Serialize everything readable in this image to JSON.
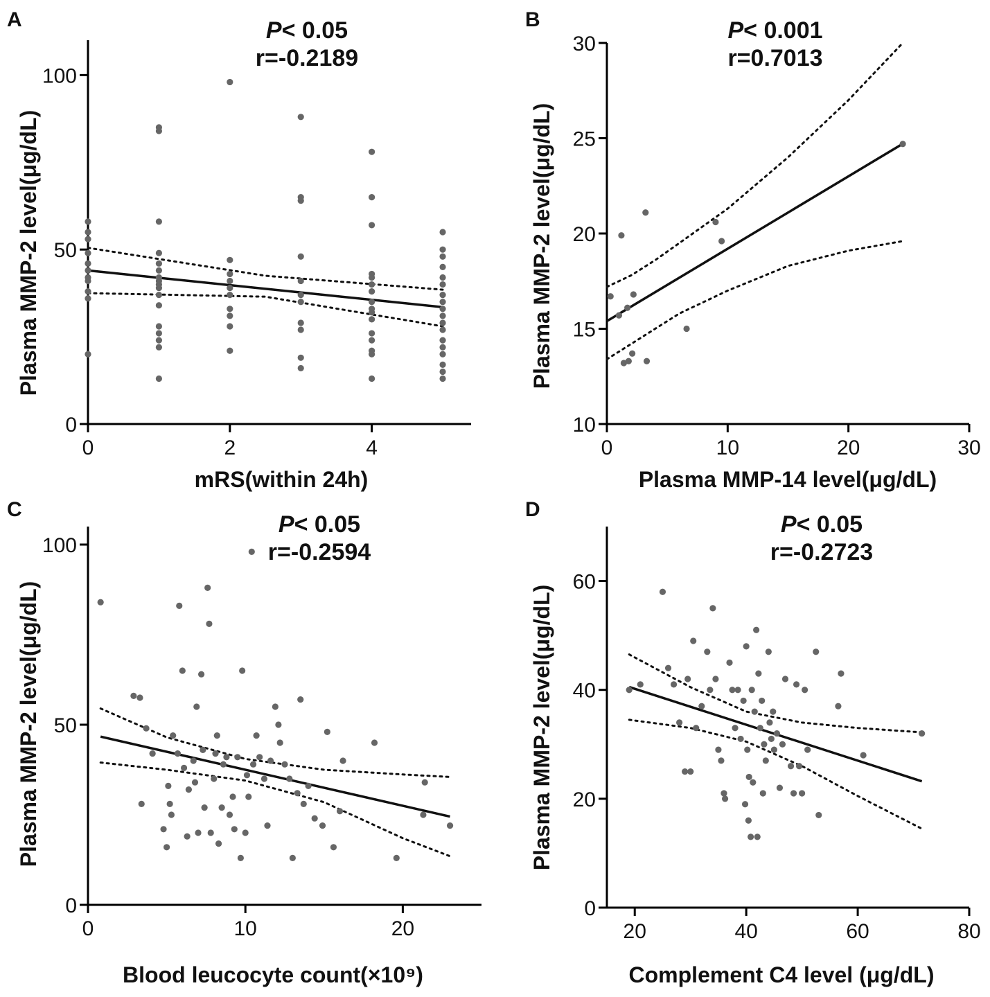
{
  "chart_data": [
    {
      "id": "A",
      "type": "scatter",
      "panel_label": "A",
      "stat_p_symbol": "P",
      "stat_p_rest": "< 0.05",
      "stat_r": "r=-0.2189",
      "xlabel": "mRS(within 24h)",
      "ylabel": "Plasma MMP-2 level(μg/dL)",
      "xlim": [
        0,
        5.4
      ],
      "ylim": [
        0,
        110
      ],
      "x_ticks": [
        0,
        2,
        4
      ],
      "x_tick_labels": [
        "0",
        "2",
        "4"
      ],
      "y_ticks": [
        0,
        50,
        100
      ],
      "y_tick_labels": [
        "0",
        "50",
        "100"
      ],
      "fit": {
        "slope": -2.1,
        "intercept": 44,
        "x_range": [
          0,
          5
        ]
      },
      "ci": {
        "x": [
          0,
          2.5,
          5
        ],
        "upper": [
          50.5,
          42.5,
          38.5
        ],
        "lower": [
          37.5,
          36.5,
          28
        ]
      },
      "points": [
        [
          0,
          20
        ],
        [
          0,
          36
        ],
        [
          0,
          38
        ],
        [
          0,
          41
        ],
        [
          0,
          42
        ],
        [
          0,
          44
        ],
        [
          0,
          46
        ],
        [
          0,
          49
        ],
        [
          0,
          53
        ],
        [
          0,
          55
        ],
        [
          0,
          58
        ],
        [
          1,
          13
        ],
        [
          1,
          22
        ],
        [
          1,
          24
        ],
        [
          1,
          26
        ],
        [
          1,
          28
        ],
        [
          1,
          34
        ],
        [
          1,
          37
        ],
        [
          1,
          39
        ],
        [
          1,
          40
        ],
        [
          1,
          41
        ],
        [
          1,
          42
        ],
        [
          1,
          44
        ],
        [
          1,
          46
        ],
        [
          1,
          49
        ],
        [
          1,
          58
        ],
        [
          1,
          84
        ],
        [
          1,
          85
        ],
        [
          2,
          21
        ],
        [
          2,
          28
        ],
        [
          2,
          31
        ],
        [
          2,
          33
        ],
        [
          2,
          37
        ],
        [
          2,
          39
        ],
        [
          2,
          41
        ],
        [
          2,
          43
        ],
        [
          2,
          47
        ],
        [
          2,
          98
        ],
        [
          3,
          16
        ],
        [
          3,
          19
        ],
        [
          3,
          27
        ],
        [
          3,
          29
        ],
        [
          3,
          35
        ],
        [
          3,
          37
        ],
        [
          3,
          41
        ],
        [
          3,
          48
        ],
        [
          3,
          64
        ],
        [
          3,
          65
        ],
        [
          3,
          88
        ],
        [
          4,
          13
        ],
        [
          4,
          20
        ],
        [
          4,
          21
        ],
        [
          4,
          24
        ],
        [
          4,
          26
        ],
        [
          4,
          30
        ],
        [
          4,
          32
        ],
        [
          4,
          33
        ],
        [
          4,
          35
        ],
        [
          4,
          38
        ],
        [
          4,
          40
        ],
        [
          4,
          42
        ],
        [
          4,
          43
        ],
        [
          4,
          57
        ],
        [
          4,
          65
        ],
        [
          4,
          78
        ],
        [
          5,
          13
        ],
        [
          5,
          15
        ],
        [
          5,
          17
        ],
        [
          5,
          20
        ],
        [
          5,
          22
        ],
        [
          5,
          24
        ],
        [
          5,
          27
        ],
        [
          5,
          29
        ],
        [
          5,
          31
        ],
        [
          5,
          33
        ],
        [
          5,
          35
        ],
        [
          5,
          37
        ],
        [
          5,
          40
        ],
        [
          5,
          42
        ],
        [
          5,
          45
        ],
        [
          5,
          48
        ],
        [
          5,
          50
        ],
        [
          5,
          55
        ]
      ]
    },
    {
      "id": "B",
      "type": "scatter",
      "panel_label": "B",
      "stat_p_symbol": "P",
      "stat_p_rest": "< 0.001",
      "stat_r": "r=0.7013",
      "xlabel": "Plasma MMP-14 level(μg/dL)",
      "ylabel": "Plasma MMP-2 level(μg/dL)",
      "xlim": [
        0,
        30
      ],
      "ylim": [
        10,
        30
      ],
      "x_ticks": [
        0,
        10,
        20,
        30
      ],
      "x_tick_labels": [
        "0",
        "10",
        "20",
        "30"
      ],
      "y_ticks": [
        10,
        15,
        20,
        25,
        30
      ],
      "y_tick_labels": [
        "10",
        "15",
        "20",
        "25",
        "30"
      ],
      "fit": {
        "slope": 0.38,
        "intercept": 15.4,
        "x_range": [
          0,
          24.5
        ]
      },
      "ci": {
        "x": [
          0,
          2,
          4,
          6,
          10,
          15,
          20,
          24.5
        ],
        "upper": [
          17.2,
          17.8,
          18.6,
          19.5,
          21.3,
          24.0,
          27.0,
          30.0
        ],
        "lower": [
          13.4,
          14.2,
          15.0,
          15.8,
          17.0,
          18.3,
          19.1,
          19.6
        ]
      },
      "points": [
        [
          0.3,
          16.7
        ],
        [
          1.0,
          15.7
        ],
        [
          1.2,
          19.9
        ],
        [
          1.4,
          13.2
        ],
        [
          1.7,
          16.1
        ],
        [
          1.8,
          13.3
        ],
        [
          2.1,
          13.7
        ],
        [
          2.2,
          16.8
        ],
        [
          3.2,
          21.1
        ],
        [
          3.3,
          13.3
        ],
        [
          6.6,
          15.0
        ],
        [
          9.0,
          20.6
        ],
        [
          9.5,
          19.6
        ],
        [
          24.5,
          24.7
        ]
      ]
    },
    {
      "id": "C",
      "type": "scatter",
      "panel_label": "C",
      "stat_p_symbol": "P",
      "stat_p_rest": "< 0.05",
      "stat_r": "r=-0.2594",
      "xlabel": "Blood leucocyte count(×10⁹)",
      "ylabel": "Plasma MMP-2 level(μg/dL)",
      "xlim": [
        0,
        25
      ],
      "ylim": [
        0,
        105
      ],
      "x_ticks": [
        0,
        10,
        20
      ],
      "x_tick_labels": [
        "0",
        "10",
        "20"
      ],
      "y_ticks": [
        0,
        50,
        100
      ],
      "y_tick_labels": [
        "0",
        "50",
        "100"
      ],
      "fit": {
        "slope": -1.0,
        "intercept": 47.5,
        "x_range": [
          0.8,
          23
        ]
      },
      "ci": {
        "x": [
          0.8,
          5,
          10,
          15,
          20,
          23
        ],
        "upper": [
          54.5,
          46.5,
          40.5,
          37.5,
          36.2,
          35.5
        ],
        "lower": [
          39.5,
          37.5,
          34.5,
          28.5,
          18.5,
          13.5
        ]
      },
      "points": [
        [
          0.8,
          84
        ],
        [
          2.9,
          58
        ],
        [
          3.3,
          57.5
        ],
        [
          3.4,
          28
        ],
        [
          3.7,
          49
        ],
        [
          4.1,
          42
        ],
        [
          4.8,
          21
        ],
        [
          5.0,
          16
        ],
        [
          5.1,
          33
        ],
        [
          5.2,
          28
        ],
        [
          5.3,
          25
        ],
        [
          5.4,
          47
        ],
        [
          5.7,
          42
        ],
        [
          5.8,
          83
        ],
        [
          6.0,
          65
        ],
        [
          6.1,
          38
        ],
        [
          6.3,
          19
        ],
        [
          6.4,
          32
        ],
        [
          6.7,
          40
        ],
        [
          6.8,
          34
        ],
        [
          6.9,
          55
        ],
        [
          7.0,
          20
        ],
        [
          7.2,
          64
        ],
        [
          7.3,
          43
        ],
        [
          7.4,
          27
        ],
        [
          7.6,
          88
        ],
        [
          7.7,
          78
        ],
        [
          7.8,
          20
        ],
        [
          8.0,
          35
        ],
        [
          8.1,
          42
        ],
        [
          8.2,
          47
        ],
        [
          8.3,
          17
        ],
        [
          8.5,
          27
        ],
        [
          8.6,
          39
        ],
        [
          8.8,
          41
        ],
        [
          9.0,
          25
        ],
        [
          9.2,
          30
        ],
        [
          9.3,
          21
        ],
        [
          9.5,
          41
        ],
        [
          9.7,
          13
        ],
        [
          9.8,
          65
        ],
        [
          10.0,
          20
        ],
        [
          10.1,
          36
        ],
        [
          10.2,
          30
        ],
        [
          10.4,
          98
        ],
        [
          10.5,
          39
        ],
        [
          10.7,
          47
        ],
        [
          10.9,
          41
        ],
        [
          11.2,
          35
        ],
        [
          11.4,
          22
        ],
        [
          11.6,
          40
        ],
        [
          11.9,
          55
        ],
        [
          12.1,
          50
        ],
        [
          12.2,
          45
        ],
        [
          12.5,
          39
        ],
        [
          12.8,
          35
        ],
        [
          13.0,
          13
        ],
        [
          13.3,
          31
        ],
        [
          13.5,
          57
        ],
        [
          13.7,
          28
        ],
        [
          14.0,
          33
        ],
        [
          14.4,
          24
        ],
        [
          14.9,
          22
        ],
        [
          15.2,
          48
        ],
        [
          15.6,
          16
        ],
        [
          16.0,
          26
        ],
        [
          16.2,
          40
        ],
        [
          18.2,
          45
        ],
        [
          19.6,
          13
        ],
        [
          21.3,
          25
        ],
        [
          21.4,
          34
        ],
        [
          23.0,
          22
        ]
      ]
    },
    {
      "id": "D",
      "type": "scatter",
      "panel_label": "D",
      "stat_p_symbol": "P",
      "stat_p_rest": "< 0.05",
      "stat_r": "r=-0.2723",
      "xlabel": "Complement C4 level (μg/dL)",
      "ylabel": "Plasma MMP-2 level(μg/dL)",
      "xlim": [
        15,
        80
      ],
      "ylim": [
        0,
        70
      ],
      "x_ticks": [
        20,
        40,
        60,
        80
      ],
      "x_tick_labels": [
        "20",
        "40",
        "60",
        "80"
      ],
      "y_ticks": [
        0,
        20,
        40,
        60
      ],
      "y_tick_labels": [
        "0",
        "20",
        "40",
        "60"
      ],
      "fit": {
        "slope": -0.33,
        "intercept": 46.8,
        "x_range": [
          19,
          71.5
        ]
      },
      "ci": {
        "x": [
          19,
          30,
          40,
          50,
          60,
          71.5
        ],
        "upper": [
          46.5,
          40.5,
          36.0,
          34.0,
          33.0,
          32.2
        ],
        "lower": [
          34.5,
          33.0,
          30.5,
          26.0,
          20.5,
          14.5
        ]
      },
      "points": [
        [
          19,
          40
        ],
        [
          21,
          41
        ],
        [
          25,
          58
        ],
        [
          26,
          44
        ],
        [
          27,
          41
        ],
        [
          28,
          34
        ],
        [
          29,
          25
        ],
        [
          29.5,
          42
        ],
        [
          30,
          25
        ],
        [
          30.5,
          49
        ],
        [
          31,
          33
        ],
        [
          32,
          37
        ],
        [
          33,
          47
        ],
        [
          33.5,
          40
        ],
        [
          34,
          55
        ],
        [
          34.5,
          42
        ],
        [
          35,
          29
        ],
        [
          35.5,
          27
        ],
        [
          36,
          21
        ],
        [
          36.2,
          20
        ],
        [
          37,
          45
        ],
        [
          37.5,
          40
        ],
        [
          38,
          33
        ],
        [
          38.5,
          40
        ],
        [
          39,
          31
        ],
        [
          39.5,
          38
        ],
        [
          39.8,
          19
        ],
        [
          40,
          48
        ],
        [
          40.2,
          29
        ],
        [
          40.4,
          16
        ],
        [
          40.5,
          24
        ],
        [
          40.8,
          13
        ],
        [
          41,
          40
        ],
        [
          41.2,
          23
        ],
        [
          41.5,
          36
        ],
        [
          41.8,
          51
        ],
        [
          42,
          13
        ],
        [
          42.2,
          43
        ],
        [
          42.5,
          33
        ],
        [
          42.8,
          38
        ],
        [
          43,
          21
        ],
        [
          43.2,
          30
        ],
        [
          43.5,
          27
        ],
        [
          44,
          47
        ],
        [
          44.2,
          34
        ],
        [
          44.5,
          31
        ],
        [
          44.8,
          36
        ],
        [
          45,
          29
        ],
        [
          45.5,
          32
        ],
        [
          46,
          22
        ],
        [
          46.5,
          30
        ],
        [
          47,
          42
        ],
        [
          48,
          26
        ],
        [
          48.5,
          21
        ],
        [
          49,
          41
        ],
        [
          49.5,
          26
        ],
        [
          50,
          21
        ],
        [
          50.5,
          40
        ],
        [
          51,
          29
        ],
        [
          52.5,
          47
        ],
        [
          53,
          17
        ],
        [
          56.5,
          37
        ],
        [
          57,
          43
        ],
        [
          61,
          28
        ],
        [
          71.5,
          32
        ]
      ]
    }
  ]
}
